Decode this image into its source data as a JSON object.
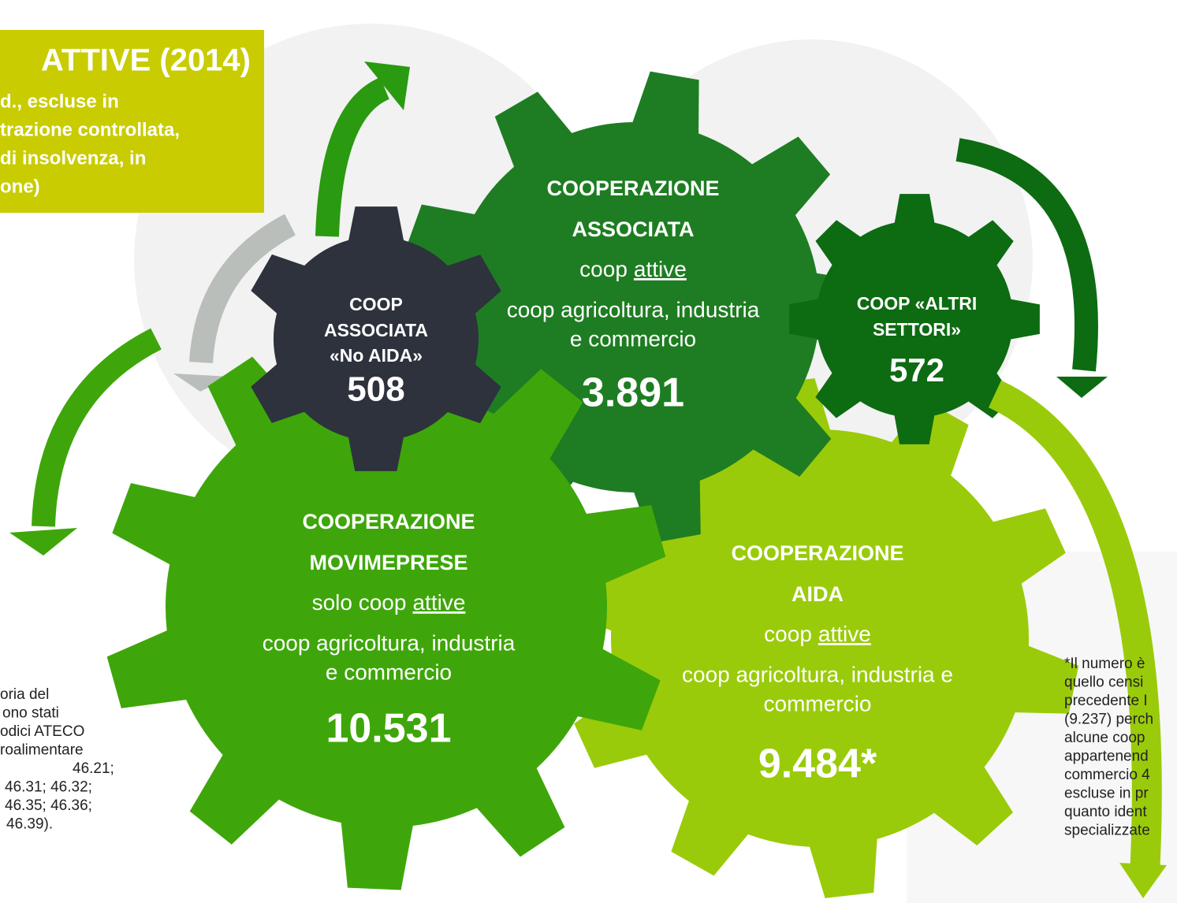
{
  "header": {
    "title": "ATTIVE (2014)",
    "subtitle_lines": [
      "d., escluse in",
      "trazione controllata,",
      "di insolvenza, in",
      "one)"
    ]
  },
  "gears": [
    {
      "lines": [
        "COOPERAZIONE",
        "AIDA"
      ],
      "scope": {
        "text": "coop",
        "underlined": "attive"
      },
      "desc": [
        "coop agricoltura, industria e",
        "commercio"
      ],
      "value": "9.484*"
    },
    {
      "lines": [
        "COOPERAZIONE",
        "ASSOCIATA"
      ],
      "scope": {
        "text": "coop",
        "underlined": "attive"
      },
      "desc": [
        "coop agricoltura, industria",
        "e commercio"
      ],
      "value": "3.891"
    },
    {
      "lines": [
        "COOPERAZIONE",
        "MOVIMEPRESE"
      ],
      "scope": {
        "text": "solo coop",
        "underlined": "attive"
      },
      "desc": [
        "coop agricoltura, industria",
        "e commercio"
      ],
      "value": "10.531"
    },
    {
      "lines": [
        "COOP",
        "ASSOCIATA",
        "«No AIDA»"
      ],
      "value": "508"
    },
    {
      "lines": [
        "COOP «ALTRI",
        "SETTORI»"
      ],
      "value": "572"
    }
  ],
  "notes": {
    "left": [
      "oria del",
      "ono stati",
      "odici ATECO",
      "roalimentare",
      "46.21;",
      "46.31; 46.32;",
      "46.35; 46.36;",
      "46.39)."
    ],
    "right": [
      "*Il numero è",
      "quello censi",
      "precedente I",
      "(9.237) perch",
      "alcune coop",
      "appartenend",
      "commercio 4",
      "escluse in pr",
      "quanto ident",
      "specializzate"
    ]
  }
}
